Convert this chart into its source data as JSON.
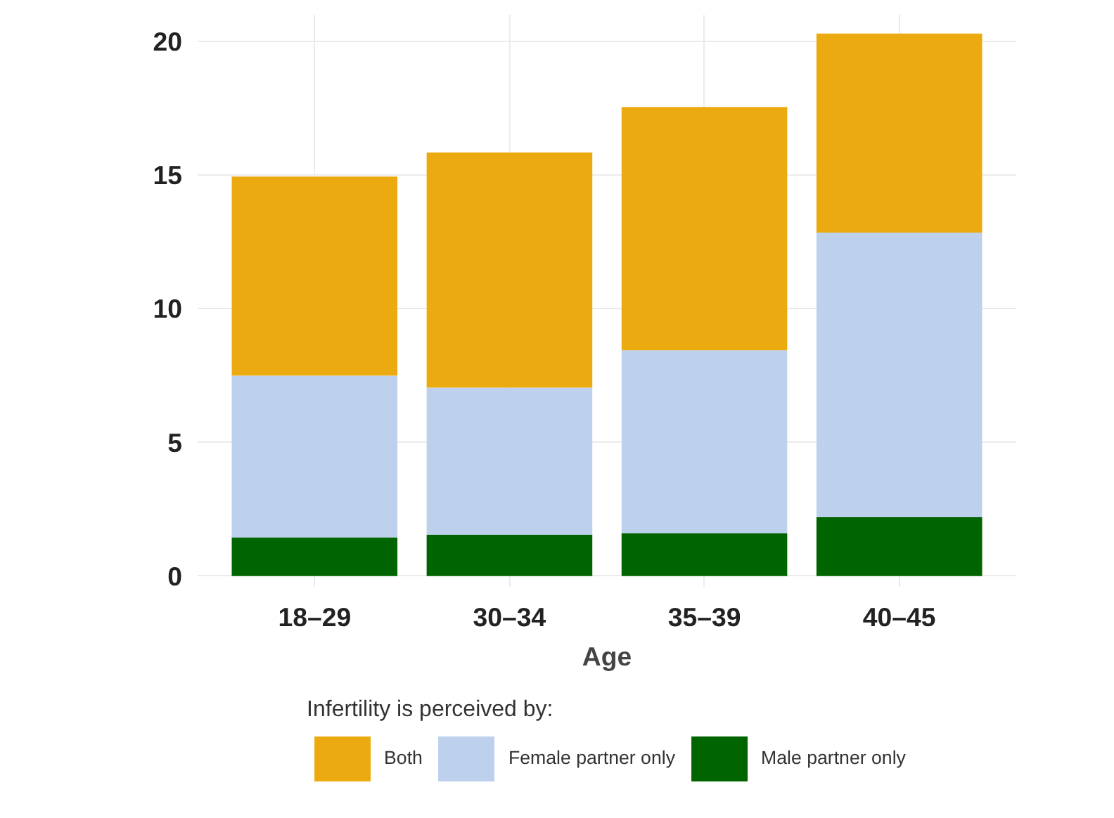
{
  "chart_data": {
    "type": "bar",
    "stacked": true,
    "xlabel": "Age",
    "legend_title": "Infertility is perceived by:",
    "legend": "bottom",
    "grid": true,
    "categories": [
      "18–29",
      "30–34",
      "35–39",
      "40–45"
    ],
    "ylim": [
      -0.4,
      21
    ],
    "yticks": [
      0,
      5,
      10,
      15,
      20
    ],
    "series": [
      {
        "name": "Male partner only",
        "color": "#006400",
        "values": [
          1.45,
          1.55,
          1.6,
          2.2
        ]
      },
      {
        "name": "Female partner only",
        "color": "#bdd1ed",
        "values": [
          6.05,
          5.5,
          6.85,
          10.65
        ]
      },
      {
        "name": "Both",
        "color": "#ebab10",
        "values": [
          7.45,
          8.8,
          9.1,
          7.45
        ]
      }
    ]
  }
}
